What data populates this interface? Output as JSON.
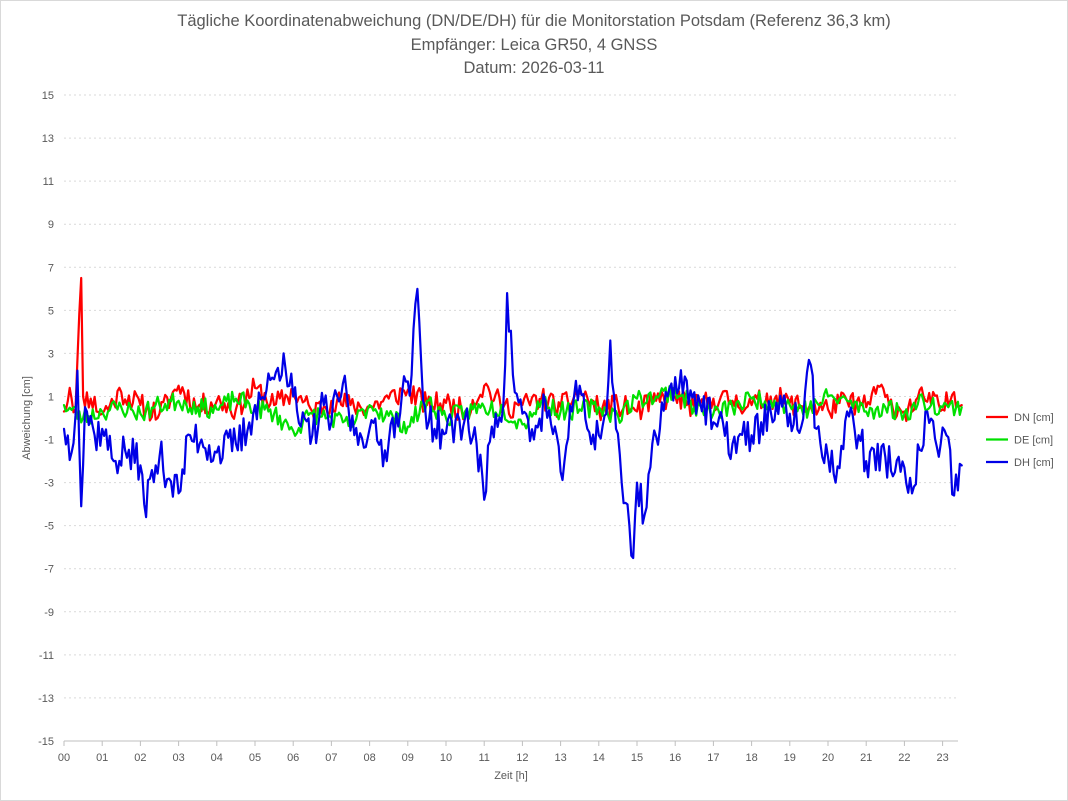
{
  "chart_data": {
    "type": "line",
    "title": "Tägliche Koordinatenabweichung (DN/DE/DH) für die Monitorstation Potsdam (Referenz 36,3 km)",
    "subtitle": "Empfänger: Leica GR50, 4 GNSS",
    "date_line": "Datum: 2026-03-11",
    "xlabel": "Zeit [h]",
    "ylabel": "Abweichung [cm]",
    "xlim": [
      0,
      24
    ],
    "ylim": [
      -15,
      15
    ],
    "x_ticks": [
      "00",
      "01",
      "02",
      "03",
      "04",
      "05",
      "06",
      "07",
      "08",
      "09",
      "10",
      "11",
      "12",
      "13",
      "14",
      "15",
      "16",
      "17",
      "18",
      "19",
      "20",
      "21",
      "22",
      "23"
    ],
    "y_ticks": [
      "15",
      "13",
      "11",
      "9",
      "7",
      "5",
      "3",
      "1",
      "-1",
      "-3",
      "-5",
      "-7",
      "-9",
      "-11",
      "-13",
      "-15"
    ],
    "y_tick_values": [
      15,
      13,
      11,
      9,
      7,
      5,
      3,
      1,
      -1,
      -3,
      -5,
      -7,
      -9,
      -11,
      -13,
      -15
    ],
    "grid": "horizontal dotted",
    "legend_position": "right",
    "series": [
      {
        "name": "DN [cm]",
        "color": "#ff0000",
        "keypoints": [
          [
            0,
            0.3
          ],
          [
            0.15,
            1.4
          ],
          [
            0.3,
            0.4
          ],
          [
            0.45,
            6.5
          ],
          [
            0.5,
            1.0
          ],
          [
            0.7,
            0.9
          ],
          [
            1.0,
            0.2
          ],
          [
            1.5,
            1.2
          ],
          [
            2.0,
            0.6
          ],
          [
            2.5,
            0.2
          ],
          [
            3.0,
            1.5
          ],
          [
            3.5,
            0.5
          ],
          [
            4.0,
            0.8
          ],
          [
            4.5,
            0.4
          ],
          [
            5.0,
            1.4
          ],
          [
            5.5,
            0.6
          ],
          [
            6.0,
            1.2
          ],
          [
            6.5,
            0.3
          ],
          [
            7.0,
            0.8
          ],
          [
            7.5,
            0.6
          ],
          [
            8.0,
            0.5
          ],
          [
            8.5,
            0.9
          ],
          [
            9.0,
            1.3
          ],
          [
            9.5,
            0.6
          ],
          [
            10.0,
            0.7
          ],
          [
            10.5,
            0.3
          ],
          [
            11.0,
            1.5
          ],
          [
            11.5,
            0.5
          ],
          [
            12.0,
            0.6
          ],
          [
            12.5,
            0.9
          ],
          [
            13.0,
            0.5
          ],
          [
            13.5,
            1.2
          ],
          [
            14.0,
            0.4
          ],
          [
            14.5,
            0.6
          ],
          [
            15.0,
            0.3
          ],
          [
            15.5,
            0.8
          ],
          [
            16.0,
            1.0
          ],
          [
            16.5,
            0.5
          ],
          [
            17.0,
            0.9
          ],
          [
            17.5,
            0.8
          ],
          [
            18.0,
            0.6
          ],
          [
            18.5,
            1.0
          ],
          [
            19.0,
            0.7
          ],
          [
            19.5,
            0.5
          ],
          [
            20.0,
            0.4
          ],
          [
            20.5,
            0.8
          ],
          [
            21.0,
            0.5
          ],
          [
            21.3,
            1.5
          ],
          [
            21.6,
            0.6
          ],
          [
            22.0,
            0.3
          ],
          [
            22.5,
            1.0
          ],
          [
            23.0,
            0.4
          ],
          [
            23.3,
            1.2
          ],
          [
            23.5,
            0.6
          ]
        ],
        "noise": 0.55,
        "seed": 11
      },
      {
        "name": "DE [cm]",
        "color": "#00e000",
        "keypoints": [
          [
            0,
            0.6
          ],
          [
            0.5,
            0.0
          ],
          [
            1.0,
            0.3
          ],
          [
            1.5,
            0.5
          ],
          [
            2.0,
            0.2
          ],
          [
            2.5,
            0.6
          ],
          [
            3.0,
            0.8
          ],
          [
            3.5,
            0.5
          ],
          [
            4.0,
            0.4
          ],
          [
            4.5,
            0.9
          ],
          [
            5.0,
            0.5
          ],
          [
            5.5,
            0.2
          ],
          [
            6.0,
            -0.6
          ],
          [
            6.5,
            0.2
          ],
          [
            7.0,
            0.0
          ],
          [
            7.5,
            -0.4
          ],
          [
            8.0,
            0.6
          ],
          [
            8.5,
            0.1
          ],
          [
            9.0,
            -0.4
          ],
          [
            9.5,
            0.8
          ],
          [
            10.0,
            0.0
          ],
          [
            10.5,
            0.3
          ],
          [
            11.0,
            0.5
          ],
          [
            11.5,
            0.4
          ],
          [
            12.0,
            -0.3
          ],
          [
            12.5,
            0.8
          ],
          [
            13.0,
            0.3
          ],
          [
            13.5,
            0.4
          ],
          [
            14.0,
            0.5
          ],
          [
            14.5,
            0.1
          ],
          [
            15.0,
            0.9
          ],
          [
            15.5,
            1.0
          ],
          [
            16.0,
            1.3
          ],
          [
            16.5,
            0.5
          ],
          [
            17.0,
            0.2
          ],
          [
            17.5,
            0.5
          ],
          [
            18.0,
            0.9
          ],
          [
            18.5,
            0.8
          ],
          [
            19.0,
            0.6
          ],
          [
            19.5,
            0.4
          ],
          [
            20.0,
            1.0
          ],
          [
            20.5,
            0.8
          ],
          [
            21.0,
            0.3
          ],
          [
            21.5,
            0.5
          ],
          [
            22.0,
            0.2
          ],
          [
            22.5,
            0.8
          ],
          [
            23.0,
            0.5
          ],
          [
            23.5,
            0.5
          ]
        ],
        "noise": 0.45,
        "seed": 23
      },
      {
        "name": "DH [cm]",
        "color": "#0000e6",
        "keypoints": [
          [
            0,
            -0.5
          ],
          [
            0.2,
            -1.6
          ],
          [
            0.35,
            2.2
          ],
          [
            0.45,
            -4.1
          ],
          [
            0.55,
            0.5
          ],
          [
            0.8,
            -0.8
          ],
          [
            1.0,
            -0.5
          ],
          [
            1.3,
            -2.0
          ],
          [
            1.6,
            -1.5
          ],
          [
            2.0,
            -2.2
          ],
          [
            2.1,
            -4.0
          ],
          [
            2.5,
            -1.8
          ],
          [
            3.0,
            -3.5
          ],
          [
            3.3,
            -0.8
          ],
          [
            3.6,
            -1.0
          ],
          [
            4.0,
            -1.6
          ],
          [
            4.5,
            -1.2
          ],
          [
            4.8,
            -0.6
          ],
          [
            5.0,
            0.6
          ],
          [
            5.3,
            1.3
          ],
          [
            5.5,
            1.8
          ],
          [
            5.75,
            3.0
          ],
          [
            6.0,
            1.0
          ],
          [
            6.2,
            -0.4
          ],
          [
            6.5,
            -0.8
          ],
          [
            6.8,
            0.6
          ],
          [
            7.0,
            -0.2
          ],
          [
            7.3,
            1.6
          ],
          [
            7.6,
            -0.8
          ],
          [
            8.0,
            -0.5
          ],
          [
            8.4,
            -1.5
          ],
          [
            8.7,
            0.2
          ],
          [
            9.0,
            1.7
          ],
          [
            9.1,
            2.0
          ],
          [
            9.25,
            6.0
          ],
          [
            9.4,
            0.8
          ],
          [
            9.7,
            -0.5
          ],
          [
            10.0,
            -0.7
          ],
          [
            10.5,
            0.0
          ],
          [
            10.8,
            -1.2
          ],
          [
            11.0,
            -3.8
          ],
          [
            11.2,
            -0.4
          ],
          [
            11.5,
            0.6
          ],
          [
            11.6,
            5.8
          ],
          [
            11.75,
            2.0
          ],
          [
            12.0,
            0.2
          ],
          [
            12.3,
            -1.0
          ],
          [
            12.6,
            0.8
          ],
          [
            13.0,
            -2.5
          ],
          [
            13.3,
            0.3
          ],
          [
            13.5,
            1.5
          ],
          [
            13.7,
            -0.5
          ],
          [
            14.0,
            -0.8
          ],
          [
            14.2,
            0.2
          ],
          [
            14.3,
            3.6
          ],
          [
            14.45,
            -0.5
          ],
          [
            14.6,
            -3.0
          ],
          [
            14.8,
            -5.0
          ],
          [
            14.9,
            -6.5
          ],
          [
            15.0,
            -3.0
          ],
          [
            15.2,
            -4.5
          ],
          [
            15.4,
            -1.2
          ],
          [
            15.6,
            -0.5
          ],
          [
            15.8,
            1.0
          ],
          [
            16.0,
            1.9
          ],
          [
            16.5,
            1.2
          ],
          [
            17.0,
            -0.2
          ],
          [
            17.5,
            -1.2
          ],
          [
            18.0,
            -0.8
          ],
          [
            18.5,
            0.3
          ],
          [
            19.0,
            0.2
          ],
          [
            19.3,
            -0.4
          ],
          [
            19.5,
            2.7
          ],
          [
            19.7,
            -0.5
          ],
          [
            20.0,
            -1.8
          ],
          [
            20.2,
            -3.0
          ],
          [
            20.5,
            0.3
          ],
          [
            20.8,
            -0.8
          ],
          [
            21.0,
            -2.0
          ],
          [
            21.5,
            -1.8
          ],
          [
            21.9,
            -2.5
          ],
          [
            22.2,
            -3.5
          ],
          [
            22.6,
            0.3
          ],
          [
            22.9,
            -1.8
          ],
          [
            23.1,
            -0.8
          ],
          [
            23.3,
            -3.6
          ],
          [
            23.5,
            -2.2
          ]
        ],
        "noise": 0.9,
        "seed": 37
      }
    ]
  }
}
